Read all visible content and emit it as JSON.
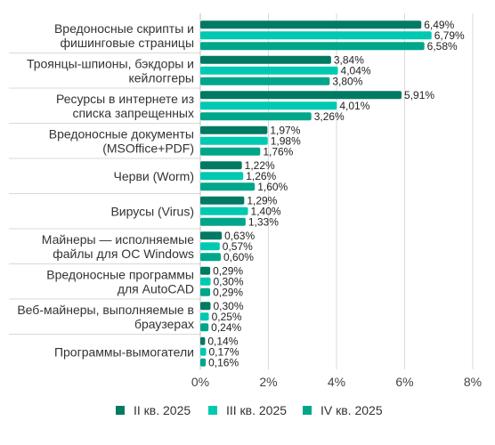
{
  "chart_data": {
    "type": "bar",
    "orientation": "horizontal",
    "categories": [
      [
        "Вредоносные скрипты и",
        "фишинговые страницы"
      ],
      [
        "Троянцы-шпионы, бэкдоры и",
        "кейлоггеры"
      ],
      [
        "Ресурсы в интернете из",
        "списка запрещенных"
      ],
      [
        "Вредоносные документы",
        "(MSOffice+PDF)"
      ],
      [
        "Черви (Worm)"
      ],
      [
        "Вирусы (Virus)"
      ],
      [
        "Майнеры — исполняемые",
        "файлы для ОС Windows"
      ],
      [
        "Вредоносные программы",
        "для AutoCAD"
      ],
      [
        "Веб-майнеры, выполняемые в",
        "браузерах"
      ],
      [
        "Программы-вымогатели"
      ]
    ],
    "series": [
      {
        "name": "II кв. 2025",
        "color": "#007a63",
        "values": [
          6.49,
          3.84,
          5.91,
          1.97,
          1.22,
          1.29,
          0.63,
          0.29,
          0.3,
          0.14
        ],
        "labels": [
          "6,49%",
          "3,84%",
          "5,91%",
          "1,97%",
          "1,22%",
          "1,29%",
          "0,63%",
          "0,29%",
          "0,30%",
          "0,14%"
        ]
      },
      {
        "name": "III кв. 2025",
        "color": "#00c9b2",
        "values": [
          6.79,
          4.04,
          4.01,
          1.98,
          1.26,
          1.4,
          0.57,
          0.3,
          0.25,
          0.17
        ],
        "labels": [
          "6,79%",
          "4,04%",
          "4,01%",
          "1,98%",
          "1,26%",
          "1,40%",
          "0,57%",
          "0,30%",
          "0,25%",
          "0,17%"
        ]
      },
      {
        "name": "IV кв. 2025",
        "color": "#00a68a",
        "values": [
          6.58,
          3.8,
          3.26,
          1.76,
          1.6,
          1.33,
          0.6,
          0.29,
          0.24,
          0.16
        ],
        "labels": [
          "6,58%",
          "3,80%",
          "3,26%",
          "1,76%",
          "1,60%",
          "1,33%",
          "0,60%",
          "0,29%",
          "0,24%",
          "0,16%"
        ]
      }
    ],
    "xlim": [
      0,
      8
    ],
    "xticks": [
      0,
      2,
      4,
      6,
      8
    ],
    "xtick_labels": [
      "0%",
      "2%",
      "4%",
      "6%",
      "8%"
    ],
    "grid": "vertical",
    "legend_position": "bottom",
    "title": "",
    "xlabel": "",
    "ylabel": ""
  },
  "colors": {
    "grid": "#d9d9d9",
    "separator": "#d9d9d9"
  }
}
